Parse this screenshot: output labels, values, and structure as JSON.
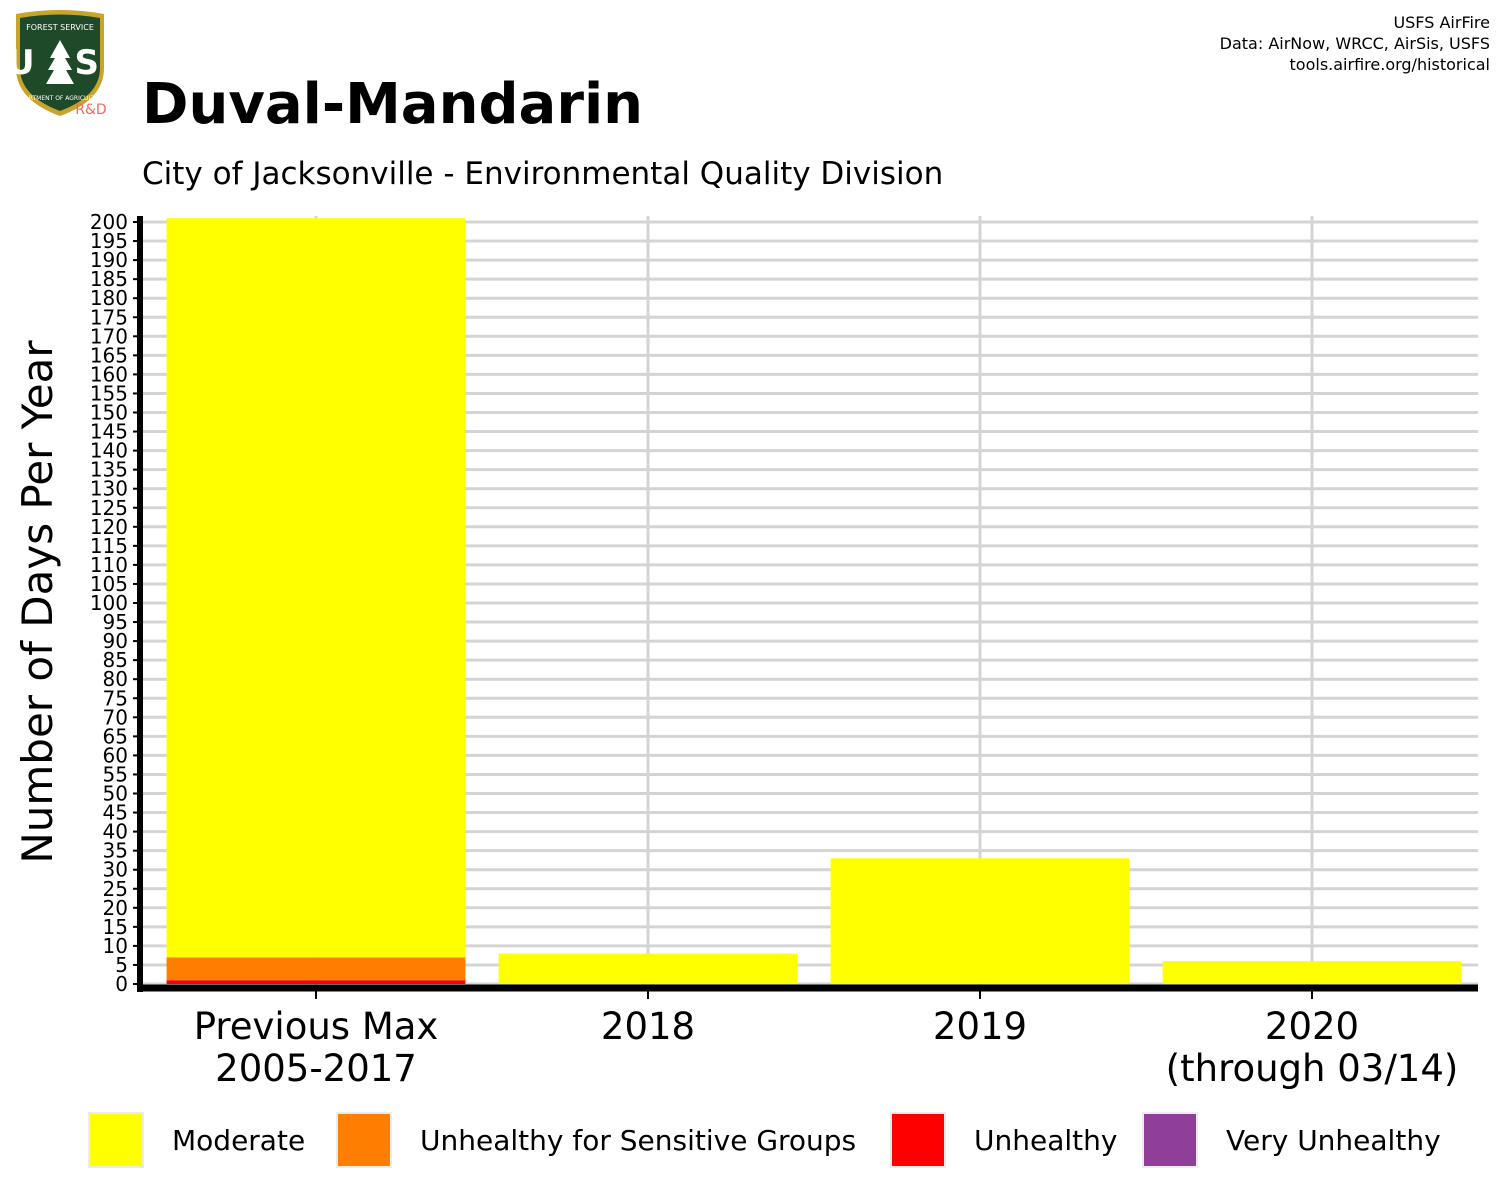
{
  "header": {
    "title": "Duval-Mandarin",
    "subtitle": "City of Jacksonville - Environmental Quality Division",
    "credits": [
      "USFS AirFire",
      "Data: AirNow, WRCC, AirSis, USFS",
      "tools.airfire.org/historical"
    ]
  },
  "logo": {
    "icon": "usfs-shield-logo-icon",
    "text_top": "FOREST SERVICE",
    "text_main": "U S",
    "text_bottom": "DEPARTMENT OF AGRICULTURE",
    "badge": "R&D"
  },
  "chart_data": {
    "type": "bar",
    "stacked": true,
    "title": "Duval-Mandarin",
    "subtitle": "City of Jacksonville - Environmental Quality Division",
    "xlabel": "",
    "ylabel": "Number of Days Per Year",
    "ylim": [
      0,
      200
    ],
    "yticks": [
      0,
      5,
      10,
      15,
      20,
      25,
      30,
      35,
      40,
      45,
      50,
      55,
      60,
      65,
      70,
      75,
      80,
      85,
      90,
      95,
      100,
      105,
      110,
      115,
      120,
      125,
      130,
      135,
      140,
      145,
      150,
      155,
      160,
      165,
      170,
      175,
      180,
      185,
      190,
      195,
      200
    ],
    "categories": [
      [
        "Previous Max",
        "2005-2017"
      ],
      [
        "2018"
      ],
      [
        "2019"
      ],
      [
        "2020",
        "(through 03/14)"
      ]
    ],
    "series": [
      {
        "name": "Unhealthy",
        "color": "#ff0000",
        "values": [
          1,
          0,
          0,
          0
        ]
      },
      {
        "name": "Unhealthy for Sensitive Groups",
        "color": "#ff7e00",
        "values": [
          6,
          0,
          0,
          0
        ]
      },
      {
        "name": "Moderate",
        "color": "#ffff00",
        "values": [
          194,
          8,
          33,
          6
        ]
      },
      {
        "name": "Very Unhealthy",
        "color": "#8f3f97",
        "values": [
          0,
          0,
          0,
          0
        ]
      }
    ],
    "grid": true,
    "legend_position": "bottom"
  },
  "legend": [
    {
      "label": "Moderate",
      "color": "#ffff00"
    },
    {
      "label": "Unhealthy for Sensitive Groups",
      "color": "#ff7e00"
    },
    {
      "label": "Unhealthy",
      "color": "#ff0000"
    },
    {
      "label": "Very Unhealthy",
      "color": "#8f3f97"
    }
  ]
}
